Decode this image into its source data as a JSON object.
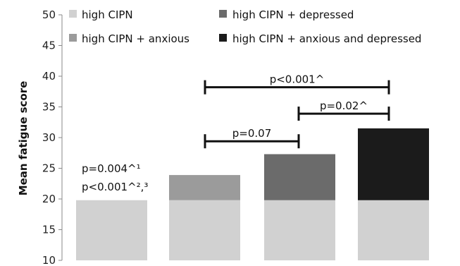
{
  "colors": {
    "high_cipn": "#d1d1d1",
    "high_cipn_anxious": "#9b9b9b",
    "high_cipn_depressed": "#6b6b6b",
    "high_cipn_anxious_depressed": "#1b1b1b",
    "axis": "#888888",
    "bracket": "#111111"
  },
  "chart_data": {
    "type": "bar",
    "ylabel": "Mean fatigue score",
    "ylim": [
      10,
      50
    ],
    "yticks": [
      "10",
      "15",
      "20",
      "25",
      "30",
      "35",
      "40",
      "45",
      "50"
    ],
    "ytick_values": [
      10,
      15,
      20,
      25,
      30,
      35,
      40,
      45,
      50
    ],
    "legend": [
      {
        "label": "high CIPN",
        "color_key": "high_cipn"
      },
      {
        "label": "high CIPN + depressed",
        "color_key": "high_cipn_depressed"
      },
      {
        "label": "high CIPN + anxious",
        "color_key": "high_cipn_anxious"
      },
      {
        "label": "high CIPN + anxious and depressed",
        "color_key": "high_cipn_anxious_depressed"
      }
    ],
    "bars": [
      {
        "base": 19.8,
        "total": 19.8,
        "color_key": "high_cipn"
      },
      {
        "base": 19.8,
        "total": 23.9,
        "color_key": "high_cipn_anxious"
      },
      {
        "base": 19.8,
        "total": 27.3,
        "color_key": "high_cipn_depressed"
      },
      {
        "base": 19.8,
        "total": 31.5,
        "color_key": "high_cipn_anxious_depressed"
      }
    ],
    "comparisons": [
      {
        "from": 1,
        "to": 3,
        "y": 38.2,
        "label": "p<0.001^"
      },
      {
        "from": 2,
        "to": 3,
        "y": 33.9,
        "label": "p=0.02^"
      },
      {
        "from": 1,
        "to": 2,
        "y": 29.4,
        "label": "p=0.07"
      }
    ],
    "annotations": [
      "p=0.004^¹",
      "p<0.001^²,³"
    ]
  }
}
